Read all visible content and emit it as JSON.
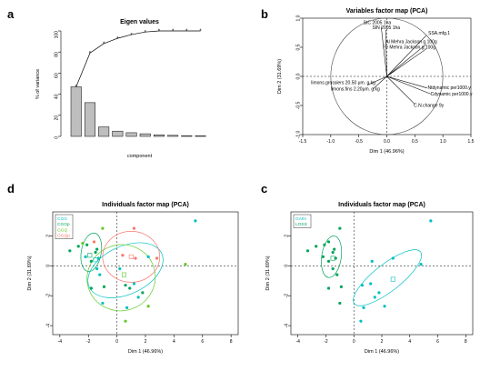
{
  "chart_data": [
    {
      "id": "a",
      "panel": "a",
      "type": "bar",
      "title": "Eigen values",
      "xlabel": "component",
      "ylabel": "% of variance",
      "ylim": [
        0,
        100
      ],
      "yticks": [
        0,
        20,
        40,
        60,
        80,
        100
      ],
      "bar_values": [
        47,
        32,
        9,
        5,
        3.5,
        2.5,
        1.5,
        1,
        0.7,
        0.5
      ],
      "cumulative_values": [
        47,
        79,
        88,
        93,
        96.5,
        99,
        100,
        100,
        100,
        100
      ],
      "bar_color": "#bebebe",
      "line_color": "#000000"
    },
    {
      "id": "b",
      "panel": "b",
      "type": "scatter",
      "title": "Variables factor map (PCA)",
      "xlabel": "Dim 1 (46.96%)",
      "ylabel": "Dim 2 (31.69%)",
      "xlim": [
        -1.5,
        1.5
      ],
      "ylim": [
        -1.0,
        1.0
      ],
      "xticks": [
        "-1.5",
        "-1.0",
        "-0.5",
        "0.0",
        "0.5",
        "1.0",
        "1.5"
      ],
      "yticks": [
        "-1.0",
        "-0.5",
        "0.0",
        "0.5",
        "1.0"
      ],
      "vectors": [
        {
          "label": "StC 2005 1ha",
          "x": -0.1,
          "y": 0.85,
          "lx": -0.42,
          "ly": 0.9
        },
        {
          "label": "SIN 2005 1ha",
          "x": -0.02,
          "y": 0.8,
          "lx": -0.26,
          "ly": 0.81
        },
        {
          "label": "SSA.mfg.1",
          "x": 0.7,
          "y": 0.7,
          "lx": 0.74,
          "ly": 0.72
        },
        {
          "label": "Al Mehra Jackson  g.100g",
          "x": 0.7,
          "y": 0.55,
          "lx": -0.02,
          "ly": 0.57
        },
        {
          "label": "Fe Mehra Jackson  g.100g",
          "x": 0.7,
          "y": 0.47,
          "lx": -0.07,
          "ly": 0.48
        },
        {
          "label": "limons.grossiers  20.50 μm.  g.kg",
          "x": -0.35,
          "y": -0.15,
          "lx": -1.35,
          "ly": -0.13
        },
        {
          "label": "limons.fins  2.20μm.  g.kg",
          "x": -0.25,
          "y": -0.22,
          "lx": -1.0,
          "ly": -0.24
        },
        {
          "label": "Ntdynamic  per1000.y",
          "x": 0.72,
          "y": -0.2,
          "lx": 0.73,
          "ly": -0.22
        },
        {
          "label": "Cdynamic  per1000.y",
          "x": 0.78,
          "y": -0.3,
          "lx": 0.78,
          "ly": -0.33
        },
        {
          "label": "C.N.change  9y",
          "x": 0.5,
          "y": -0.48,
          "lx": 0.48,
          "ly": -0.52
        }
      ]
    },
    {
      "id": "d",
      "panel": "d",
      "type": "scatter",
      "title": "Individuals factor map (PCA)",
      "xlabel": "Dim 1 (46.96%)",
      "ylabel": "Dim 2 (31.69%)",
      "xlim": [
        -4.5,
        8.5
      ],
      "ylim": [
        -4.6,
        3.6
      ],
      "xticks": [
        "-4",
        "-2",
        "0",
        "2",
        "4",
        "6",
        "8"
      ],
      "yticks": [
        "-4",
        "-2",
        "0",
        "2"
      ],
      "legend": [
        {
          "name": "CGG",
          "color": "#00bfc4"
        },
        {
          "name": "CGGp",
          "color": "#00a45c"
        },
        {
          "name": "GGQ",
          "color": "#5ec927"
        },
        {
          "name": "GGQp",
          "color": "#f8766d"
        }
      ],
      "points": [
        {
          "x": -3.3,
          "y": 1.0,
          "c": "#00a45c"
        },
        {
          "x": -2.7,
          "y": 1.3,
          "c": "#00a45c"
        },
        {
          "x": -2.4,
          "y": 1.5,
          "c": "#5ec927"
        },
        {
          "x": -2.1,
          "y": 1.4,
          "c": "#00a45c"
        },
        {
          "x": -2.2,
          "y": 0.6,
          "c": "#00bfc4"
        },
        {
          "x": -1.8,
          "y": 0.3,
          "c": "#00a45c"
        },
        {
          "x": -1.6,
          "y": 1.6,
          "c": "#f8766d"
        },
        {
          "x": -1.5,
          "y": 0.9,
          "c": "#00a45c"
        },
        {
          "x": -1.4,
          "y": 1.1,
          "c": "#00a45c"
        },
        {
          "x": -1.3,
          "y": 0.5,
          "c": "#00bfc4"
        },
        {
          "x": -1.4,
          "y": -0.2,
          "c": "#00bfc4"
        },
        {
          "x": -1.2,
          "y": -0.6,
          "c": "#00bfc4"
        },
        {
          "x": -1.8,
          "y": -1.5,
          "c": "#00a45c"
        },
        {
          "x": -1.0,
          "y": -2.5,
          "c": "#00bfc4"
        },
        {
          "x": -0.9,
          "y": -1.4,
          "c": "#00a45c"
        },
        {
          "x": -1.0,
          "y": 2.5,
          "c": "#5ec927"
        },
        {
          "x": 1.2,
          "y": 2.5,
          "c": "#f8766d"
        },
        {
          "x": 0.4,
          "y": 0.7,
          "c": "#f8766d"
        },
        {
          "x": 1.3,
          "y": 0.5,
          "c": "#f8766d"
        },
        {
          "x": 0.2,
          "y": -0.2,
          "c": "#00bfc4"
        },
        {
          "x": 0.6,
          "y": -1.3,
          "c": "#00a45c"
        },
        {
          "x": 0.9,
          "y": -1.5,
          "c": "#00a45c"
        },
        {
          "x": 1.2,
          "y": -1.2,
          "c": "#00bfc4"
        },
        {
          "x": 1.8,
          "y": -1.8,
          "c": "#00a45c"
        },
        {
          "x": 1.5,
          "y": -2.1,
          "c": "#00bfc4"
        },
        {
          "x": 0.7,
          "y": -2.8,
          "c": "#00bfc4"
        },
        {
          "x": 0.6,
          "y": -3.7,
          "c": "#5ec927"
        },
        {
          "x": 2.2,
          "y": -2.7,
          "c": "#5ec927"
        },
        {
          "x": 2.8,
          "y": 0.5,
          "c": "#f8766d"
        },
        {
          "x": 2.2,
          "y": 0.6,
          "c": "#00bfc4"
        },
        {
          "x": 4.8,
          "y": 0.1,
          "c": "#5ec927"
        },
        {
          "x": 5.5,
          "y": 3.0,
          "c": "#00bfc4"
        }
      ],
      "ellipses": [
        {
          "cx": -1.8,
          "cy": 0.9,
          "rx": 0.7,
          "ry": 1.3,
          "rot": 10,
          "c": "#00a45c"
        },
        {
          "cx": 0.6,
          "cy": -0.3,
          "rx": 2.8,
          "ry": 1.6,
          "rot": -25,
          "c": "#00bfc4"
        },
        {
          "cx": 0.3,
          "cy": -0.8,
          "rx": 2.4,
          "ry": 2.2,
          "rot": -20,
          "c": "#5ec927"
        },
        {
          "cx": 1.0,
          "cy": 0.6,
          "rx": 2.0,
          "ry": 1.7,
          "rot": 0,
          "c": "#f8766d"
        }
      ],
      "centroids": [
        {
          "x": -1.9,
          "y": 0.7,
          "c": "#00a45c"
        },
        {
          "x": -1.5,
          "y": 0.4,
          "c": "#00bfc4"
        },
        {
          "x": 0.5,
          "y": -0.6,
          "c": "#5ec927"
        },
        {
          "x": 1.0,
          "y": 0.6,
          "c": "#f8766d"
        }
      ]
    },
    {
      "id": "c",
      "panel": "c",
      "type": "scatter",
      "title": "Individuals factor map (PCA)",
      "xlabel": "Dim 1 (46.96%)",
      "ylabel": "Dim 2 (31.69%)",
      "xlim": [
        -4.5,
        8.5
      ],
      "ylim": [
        -4.6,
        3.6
      ],
      "xticks": [
        "-4",
        "-2",
        "0",
        "2",
        "4",
        "6",
        "8"
      ],
      "yticks": [
        "-4",
        "-2",
        "0",
        "2"
      ],
      "legend": [
        {
          "name": "GAIN",
          "color": "#00bfc4"
        },
        {
          "name": "LOSS",
          "color": "#00a45c"
        }
      ],
      "points": [
        {
          "x": -3.3,
          "y": 1.0,
          "c": "#00a45c"
        },
        {
          "x": -2.7,
          "y": 1.3,
          "c": "#00a45c"
        },
        {
          "x": -2.1,
          "y": 1.4,
          "c": "#00a45c"
        },
        {
          "x": -1.8,
          "y": 1.6,
          "c": "#00a45c"
        },
        {
          "x": -1.8,
          "y": 0.3,
          "c": "#00a45c"
        },
        {
          "x": -1.5,
          "y": 0.9,
          "c": "#00a45c"
        },
        {
          "x": -1.4,
          "y": 1.1,
          "c": "#00a45c"
        },
        {
          "x": -1.3,
          "y": 0.5,
          "c": "#00a45c"
        },
        {
          "x": -1.5,
          "y": -0.2,
          "c": "#00a45c"
        },
        {
          "x": -1.2,
          "y": -0.6,
          "c": "#00a45c"
        },
        {
          "x": -1.8,
          "y": -1.5,
          "c": "#00a45c"
        },
        {
          "x": -0.9,
          "y": -1.4,
          "c": "#00a45c"
        },
        {
          "x": -1.0,
          "y": 2.5,
          "c": "#00a45c"
        },
        {
          "x": -2.2,
          "y": 0.6,
          "c": "#00a45c"
        },
        {
          "x": -1.0,
          "y": -2.5,
          "c": "#00a45c"
        },
        {
          "x": 0.6,
          "y": -1.3,
          "c": "#00bfc4"
        },
        {
          "x": 1.2,
          "y": -1.2,
          "c": "#00bfc4"
        },
        {
          "x": 1.8,
          "y": -1.8,
          "c": "#00bfc4"
        },
        {
          "x": 1.5,
          "y": -2.1,
          "c": "#00bfc4"
        },
        {
          "x": 0.7,
          "y": -2.8,
          "c": "#00bfc4"
        },
        {
          "x": 0.5,
          "y": -3.7,
          "c": "#00bfc4"
        },
        {
          "x": 2.2,
          "y": -2.7,
          "c": "#00bfc4"
        },
        {
          "x": 2.8,
          "y": 0.5,
          "c": "#00bfc4"
        },
        {
          "x": 4.8,
          "y": 0.1,
          "c": "#00bfc4"
        },
        {
          "x": 5.5,
          "y": 3.0,
          "c": "#00bfc4"
        },
        {
          "x": 1.3,
          "y": 0.3,
          "c": "#00bfc4"
        }
      ],
      "ellipses": [
        {
          "cx": -1.6,
          "cy": 0.6,
          "rx": 0.7,
          "ry": 1.4,
          "rot": 8,
          "c": "#00a45c"
        },
        {
          "cx": 2.4,
          "cy": -0.8,
          "rx": 3.0,
          "ry": 0.9,
          "rot": -38,
          "c": "#00bfc4"
        }
      ],
      "centroids": [
        {
          "x": -1.5,
          "y": 0.5,
          "c": "#00a45c"
        },
        {
          "x": 2.8,
          "y": -0.9,
          "c": "#00bfc4"
        }
      ]
    }
  ]
}
